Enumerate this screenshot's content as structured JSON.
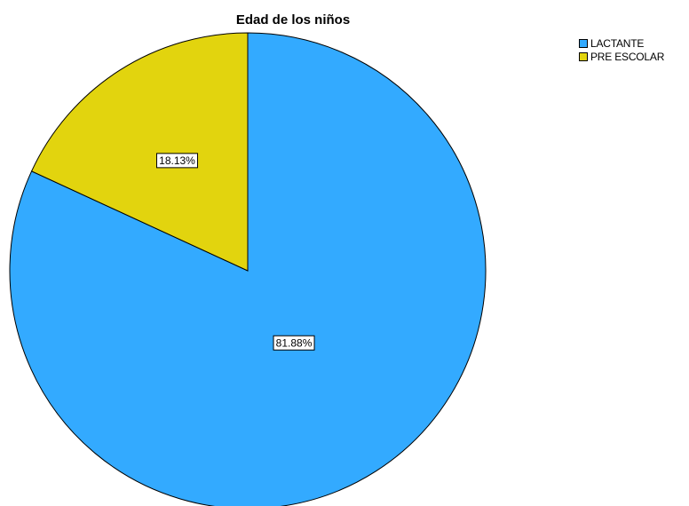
{
  "chart_data": {
    "type": "pie",
    "title": "Edad de los niños",
    "slices": [
      {
        "label": "LACTANTE",
        "value": 81.88,
        "display": "81.88%",
        "color": "#33AAFF"
      },
      {
        "label": "PRE ESCOLAR",
        "value": 18.13,
        "display": "18.13%",
        "color": "#E2D40E"
      }
    ],
    "legend_position": "top-right",
    "start_angle_deg": 0,
    "direction": "clockwise"
  }
}
